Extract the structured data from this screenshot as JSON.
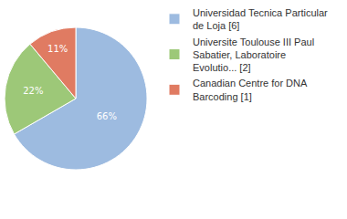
{
  "chart_data": {
    "type": "pie",
    "categories": [
      "Universidad Tecnica Particular de Loja [6]",
      "Universite Toulouse III Paul Sabatier, Laboratoire Evolutio... [2]",
      "Canadian Centre for DNA Barcoding [1]"
    ],
    "values": [
      66,
      22,
      11
    ],
    "value_labels": [
      "66%",
      "22%",
      "11%"
    ],
    "colors": [
      "#9dbbe0",
      "#9dc878",
      "#e07b62"
    ],
    "data_labels": true,
    "legend": "upper right"
  }
}
